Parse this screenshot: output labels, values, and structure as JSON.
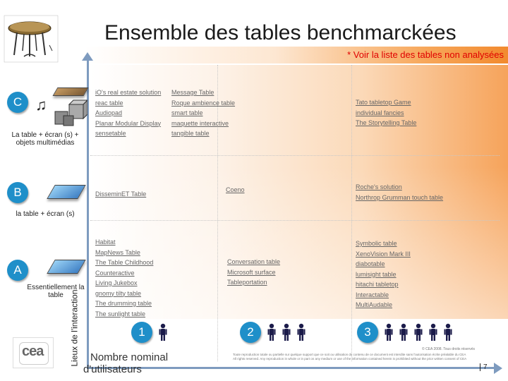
{
  "header": {
    "title": "Ensemble des tables benchmarckées",
    "note": "* Voir la liste des tables non analysées"
  },
  "axes": {
    "y_label": "Lieux de l'interaction",
    "x_label_line1": "Nombre nominal",
    "x_label_line2": "d'utilisateurs"
  },
  "levels": [
    {
      "letter": "C",
      "label": "La table + écran (s) + objets multimédias"
    },
    {
      "letter": "B",
      "label": "la table + écran (s)"
    },
    {
      "letter": "A",
      "label": "Essentiellement la table"
    }
  ],
  "user_groups": [
    {
      "number": "1",
      "persons": 1
    },
    {
      "number": "2",
      "persons": 3
    },
    {
      "number": "3",
      "persons": 5
    }
  ],
  "cells": {
    "C1a": [
      "iO's real estate solution",
      "reac table",
      "Audiopad",
      "Planar Modular Display",
      "sensetable"
    ],
    "C1b": [
      "Message Table",
      "Roque ambience table",
      "smart table",
      "maquette interactive",
      "tangible table"
    ],
    "C3": [
      "Tato tabletop Game",
      "individual fancies",
      "The Storytelling Table"
    ],
    "B1": [
      "DisseminET Table"
    ],
    "B2": [
      "Coeno"
    ],
    "B3": [
      "Roche's solution",
      "Northrop Grumman touch table"
    ],
    "A1": [
      "Habitat",
      "MapNews Table",
      "The Table Childhood",
      "Counteractive",
      "Living Jukebox",
      "gnomy tilty table",
      "The drumming table",
      "The sunlight table"
    ],
    "A2": [
      "Conversation table",
      "Microsoft surface",
      "Tableportation"
    ],
    "A3": [
      "Symbolic table",
      "XenoVision Mark III",
      "diabotable",
      "lumisight table",
      "hitachi tabletop",
      "Interactable",
      "MultiAudable"
    ]
  },
  "logo_text": "cea",
  "copyright": "© CEA 2008. Tous droits réservés",
  "disclaimer_1": "Toute reproduction totale ou partielle sur quelque support que ce soit ou utilisation du contenu de ce document est interdite sans l'autorisation écrite préalable du CEA",
  "disclaimer_2": "All rights reserved. Any reproduction in whole or in part on any medium or use of the information contained herein is prohibited without the prior written consent of CEA",
  "page_number": "7",
  "colors": {
    "accent": "#1f8fc9",
    "axis": "#7e9bbf",
    "note": "#e00000",
    "gradient_end": "#f28a2e"
  }
}
